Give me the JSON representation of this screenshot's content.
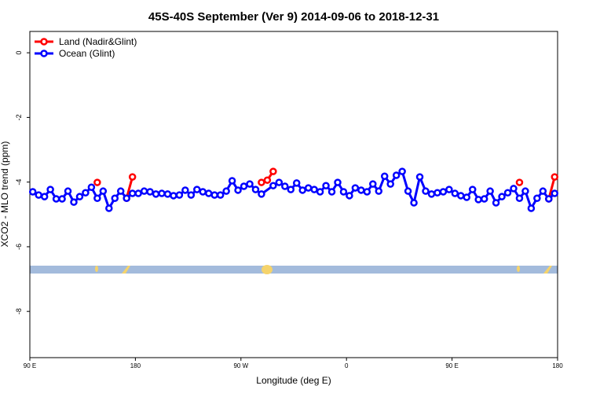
{
  "chart_data": {
    "type": "line",
    "title": "45S-40S September (Ver 9)   2014-09-06 to 2018-12-31",
    "x_label": "Longitude (deg E)",
    "y_label": "XCO2 - MLO trend (ppm)",
    "xlim": [
      90,
      540
    ],
    "ylim": [
      -9.43,
      0.66
    ],
    "xticks": [
      {
        "value": 90,
        "label": "90 E"
      },
      180,
      {
        "value": 270,
        "label": "90 W"
      },
      {
        "value": 360,
        "label": "0"
      },
      {
        "value": 450,
        "label": "90 E"
      },
      {
        "value": 540,
        "label": "180"
      }
    ],
    "yticks": [
      0,
      -2,
      -4,
      -6,
      -8
    ],
    "legend": "top-left",
    "series": [
      {
        "name": "Land (Nadir&Glint)",
        "color": "#ff0000",
        "x": [
          147.5,
          160,
          172.5,
          177.5,
          230,
          287.5,
          292.5,
          297.5,
          400,
          507.5,
          520,
          532.5,
          537.5
        ],
        "values": [
          -4.01,
          null,
          -4.5,
          -3.84,
          null,
          -4.01,
          -3.94,
          -3.67,
          null,
          -4.01,
          null,
          -4.52,
          -3.84
        ]
      },
      {
        "name": "Ocean (Glint)",
        "color": "#0000ff",
        "x": [
          92.5,
          97.5,
          102.5,
          107.5,
          112.5,
          117.5,
          122.5,
          127.5,
          132.5,
          137.5,
          142.5,
          147.5,
          152.5,
          157.5,
          162.5,
          167.5,
          172.5,
          177.5,
          182.5,
          187.5,
          192.5,
          197.5,
          202.5,
          207.5,
          212.5,
          217.5,
          222.5,
          227.5,
          232.5,
          237.5,
          242.5,
          247.5,
          252.5,
          257.5,
          262.5,
          267.5,
          272.5,
          277.5,
          282.5,
          287.5,
          297.5,
          302.5,
          307.5,
          312.5,
          317.5,
          322.5,
          327.5,
          332.5,
          337.5,
          342.5,
          347.5,
          352.5,
          357.5,
          362.5,
          367.5,
          372.5,
          377.5,
          382.5,
          387.5,
          392.5,
          397.5,
          402.5,
          407.5,
          412.5,
          417.5,
          422.5,
          427.5,
          432.5,
          437.5,
          442.5,
          447.5,
          452.5,
          457.5,
          462.5,
          467.5,
          472.5,
          477.5,
          482.5,
          487.5,
          492.5,
          497.5,
          502.5,
          507.5,
          512.5,
          517.5,
          522.5,
          527.5,
          532.5,
          537.5
        ],
        "values": [
          -4.3,
          -4.4,
          -4.45,
          -4.23,
          -4.52,
          -4.52,
          -4.28,
          -4.62,
          -4.45,
          -4.33,
          -4.16,
          -4.5,
          -4.28,
          -4.81,
          -4.5,
          -4.28,
          -4.5,
          -4.35,
          -4.35,
          -4.28,
          -4.3,
          -4.37,
          -4.35,
          -4.37,
          -4.42,
          -4.4,
          -4.25,
          -4.4,
          -4.23,
          -4.3,
          -4.35,
          -4.4,
          -4.4,
          -4.28,
          -3.96,
          -4.25,
          -4.13,
          -4.06,
          -4.23,
          -4.37,
          -4.11,
          -4.01,
          -4.13,
          -4.23,
          -4.03,
          -4.25,
          -4.18,
          -4.23,
          -4.3,
          -4.11,
          -4.3,
          -4.01,
          -4.3,
          -4.42,
          -4.18,
          -4.25,
          -4.3,
          -4.06,
          -4.28,
          -3.82,
          -4.06,
          -3.79,
          -3.67,
          -4.28,
          -4.64,
          -3.84,
          -4.28,
          -4.37,
          -4.33,
          -4.3,
          -4.23,
          -4.35,
          -4.42,
          -4.47,
          -4.23,
          -4.54,
          -4.52,
          -4.28,
          -4.64,
          -4.45,
          -4.33,
          -4.2,
          -4.5,
          -4.28,
          -4.81,
          -4.5,
          -4.28,
          -4.52,
          -4.35
        ]
      }
    ]
  }
}
